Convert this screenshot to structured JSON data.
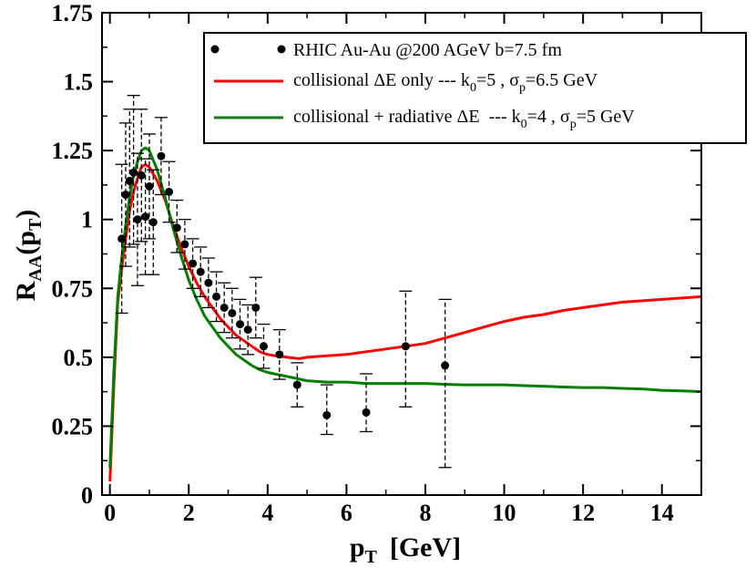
{
  "chart_data": {
    "type": "line",
    "title": "",
    "xlabel": "p",
    "xlabel_sub": "T",
    "xlabel_unit": "[GeV]",
    "ylabel_main": "R",
    "ylabel_sub": "AA",
    "ylabel_arg": "p",
    "ylabel_arg_sub": "T",
    "xlim": [
      -0.2,
      15
    ],
    "ylim": [
      0,
      1.75
    ],
    "xticks": [
      0,
      2,
      4,
      6,
      8,
      10,
      12,
      14
    ],
    "xtick_labels": [
      "0",
      "2",
      "4",
      "6",
      "8",
      "10",
      "12",
      "14"
    ],
    "yticks": [
      0,
      0.25,
      0.5,
      0.75,
      1,
      1.25,
      1.5,
      1.75
    ],
    "ytick_labels": [
      "0",
      "0.25",
      "0.5",
      "0.75",
      "1",
      "1.25",
      "1.5",
      "1.75"
    ],
    "legend": {
      "position": "top-right",
      "entries": [
        {
          "kind": "points",
          "color": "#000000",
          "text_parts": [
            "RHIC Au-Au @200 AGeV b=7.5 fm"
          ]
        },
        {
          "kind": "line",
          "color": "#ff0000",
          "text_parts": [
            "collisional ΔE only --- k",
            "0",
            "=5 , σ",
            "p",
            "=6.5 GeV"
          ]
        },
        {
          "kind": "line",
          "color": "#008000",
          "text_parts": [
            "collisional + radiative ΔE  --- k",
            "0",
            "=4 , σ",
            "p",
            "=5 GeV"
          ]
        }
      ]
    },
    "series": [
      {
        "name": "RHIC Au-Au @200 AGeV b=7.5 fm",
        "kind": "points",
        "color": "#000000",
        "points": [
          {
            "x": 0.3,
            "y": 0.93,
            "lo": 0.66,
            "hi": 1.2
          },
          {
            "x": 0.4,
            "y": 1.09,
            "lo": 0.83,
            "hi": 1.35
          },
          {
            "x": 0.5,
            "y": 1.14,
            "lo": 0.9,
            "hi": 1.4
          },
          {
            "x": 0.6,
            "y": 1.17,
            "lo": 0.91,
            "hi": 1.45
          },
          {
            "x": 0.7,
            "y": 1.0,
            "lo": 0.76,
            "hi": 1.24
          },
          {
            "x": 0.8,
            "y": 1.16,
            "lo": 0.92,
            "hi": 1.4
          },
          {
            "x": 0.9,
            "y": 1.01,
            "lo": 0.8,
            "hi": 1.22
          },
          {
            "x": 1.0,
            "y": 1.12,
            "lo": 0.93,
            "hi": 1.31
          },
          {
            "x": 1.1,
            "y": 0.99,
            "lo": 0.8,
            "hi": 1.18
          },
          {
            "x": 1.3,
            "y": 1.23,
            "lo": 1.09,
            "hi": 1.37
          },
          {
            "x": 1.5,
            "y": 1.1,
            "lo": 0.99,
            "hi": 1.21
          },
          {
            "x": 1.7,
            "y": 0.97,
            "lo": 0.88,
            "hi": 1.07
          },
          {
            "x": 1.9,
            "y": 0.91,
            "lo": 0.82,
            "hi": 1.0
          },
          {
            "x": 2.1,
            "y": 0.84,
            "lo": 0.75,
            "hi": 0.93
          },
          {
            "x": 2.3,
            "y": 0.81,
            "lo": 0.72,
            "hi": 0.9
          },
          {
            "x": 2.5,
            "y": 0.77,
            "lo": 0.68,
            "hi": 0.86
          },
          {
            "x": 2.7,
            "y": 0.72,
            "lo": 0.63,
            "hi": 0.81
          },
          {
            "x": 2.9,
            "y": 0.68,
            "lo": 0.59,
            "hi": 0.77
          },
          {
            "x": 3.1,
            "y": 0.66,
            "lo": 0.57,
            "hi": 0.75
          },
          {
            "x": 3.3,
            "y": 0.62,
            "lo": 0.53,
            "hi": 0.71
          },
          {
            "x": 3.5,
            "y": 0.6,
            "lo": 0.51,
            "hi": 0.69
          },
          {
            "x": 3.7,
            "y": 0.68,
            "lo": 0.57,
            "hi": 0.79
          },
          {
            "x": 3.9,
            "y": 0.54,
            "lo": 0.46,
            "hi": 0.62
          },
          {
            "x": 4.3,
            "y": 0.51,
            "lo": 0.42,
            "hi": 0.6
          },
          {
            "x": 4.75,
            "y": 0.4,
            "lo": 0.32,
            "hi": 0.48
          },
          {
            "x": 5.5,
            "y": 0.29,
            "lo": 0.22,
            "hi": 0.4
          },
          {
            "x": 6.5,
            "y": 0.3,
            "lo": 0.23,
            "hi": 0.44
          },
          {
            "x": 7.5,
            "y": 0.54,
            "lo": 0.32,
            "hi": 0.74
          },
          {
            "x": 8.5,
            "y": 0.47,
            "lo": 0.1,
            "hi": 0.71
          }
        ]
      },
      {
        "name": "collisional ΔE only",
        "kind": "line",
        "color": "#ff0000",
        "x": [
          0,
          0.1,
          0.2,
          0.3,
          0.4,
          0.5,
          0.6,
          0.7,
          0.8,
          0.9,
          1.0,
          1.2,
          1.4,
          1.6,
          1.8,
          2.0,
          2.2,
          2.4,
          2.6,
          2.8,
          3.0,
          3.2,
          3.4,
          3.6,
          3.8,
          4.0,
          4.2,
          4.5,
          4.8,
          5.0,
          5.5,
          6.0,
          6.5,
          7.0,
          7.5,
          8.0,
          8.5,
          9.0,
          9.5,
          10.0,
          10.5,
          11.0,
          11.5,
          12.0,
          12.5,
          13.0,
          13.5,
          14.0,
          14.5,
          15.0
        ],
        "y": [
          0.05,
          0.4,
          0.7,
          0.82,
          0.93,
          1.03,
          1.1,
          1.15,
          1.19,
          1.2,
          1.19,
          1.14,
          1.07,
          0.98,
          0.9,
          0.83,
          0.77,
          0.72,
          0.68,
          0.64,
          0.61,
          0.58,
          0.56,
          0.54,
          0.52,
          0.51,
          0.505,
          0.5,
          0.495,
          0.5,
          0.505,
          0.51,
          0.52,
          0.53,
          0.54,
          0.55,
          0.57,
          0.59,
          0.61,
          0.63,
          0.645,
          0.655,
          0.67,
          0.68,
          0.69,
          0.7,
          0.705,
          0.71,
          0.715,
          0.72
        ]
      },
      {
        "name": "collisional + radiative ΔE",
        "kind": "line",
        "color": "#008000",
        "x": [
          0,
          0.1,
          0.2,
          0.3,
          0.4,
          0.5,
          0.6,
          0.7,
          0.8,
          0.9,
          1.0,
          1.2,
          1.4,
          1.6,
          1.8,
          2.0,
          2.2,
          2.4,
          2.6,
          2.8,
          3.0,
          3.2,
          3.4,
          3.6,
          3.8,
          4.0,
          4.5,
          5.0,
          5.5,
          6.0,
          6.5,
          7.0,
          7.5,
          8.0,
          8.5,
          9.0,
          9.5,
          10.0,
          10.5,
          11.0,
          11.5,
          12.0,
          12.5,
          13.0,
          13.5,
          14.0,
          14.5,
          15.0
        ],
        "y": [
          0.1,
          0.45,
          0.72,
          0.86,
          0.98,
          1.08,
          1.16,
          1.21,
          1.25,
          1.26,
          1.25,
          1.18,
          1.08,
          0.97,
          0.87,
          0.78,
          0.71,
          0.65,
          0.61,
          0.57,
          0.54,
          0.51,
          0.49,
          0.47,
          0.455,
          0.445,
          0.43,
          0.415,
          0.41,
          0.41,
          0.405,
          0.405,
          0.405,
          0.405,
          0.402,
          0.4,
          0.4,
          0.4,
          0.397,
          0.395,
          0.392,
          0.39,
          0.39,
          0.387,
          0.385,
          0.38,
          0.378,
          0.375
        ]
      }
    ]
  }
}
